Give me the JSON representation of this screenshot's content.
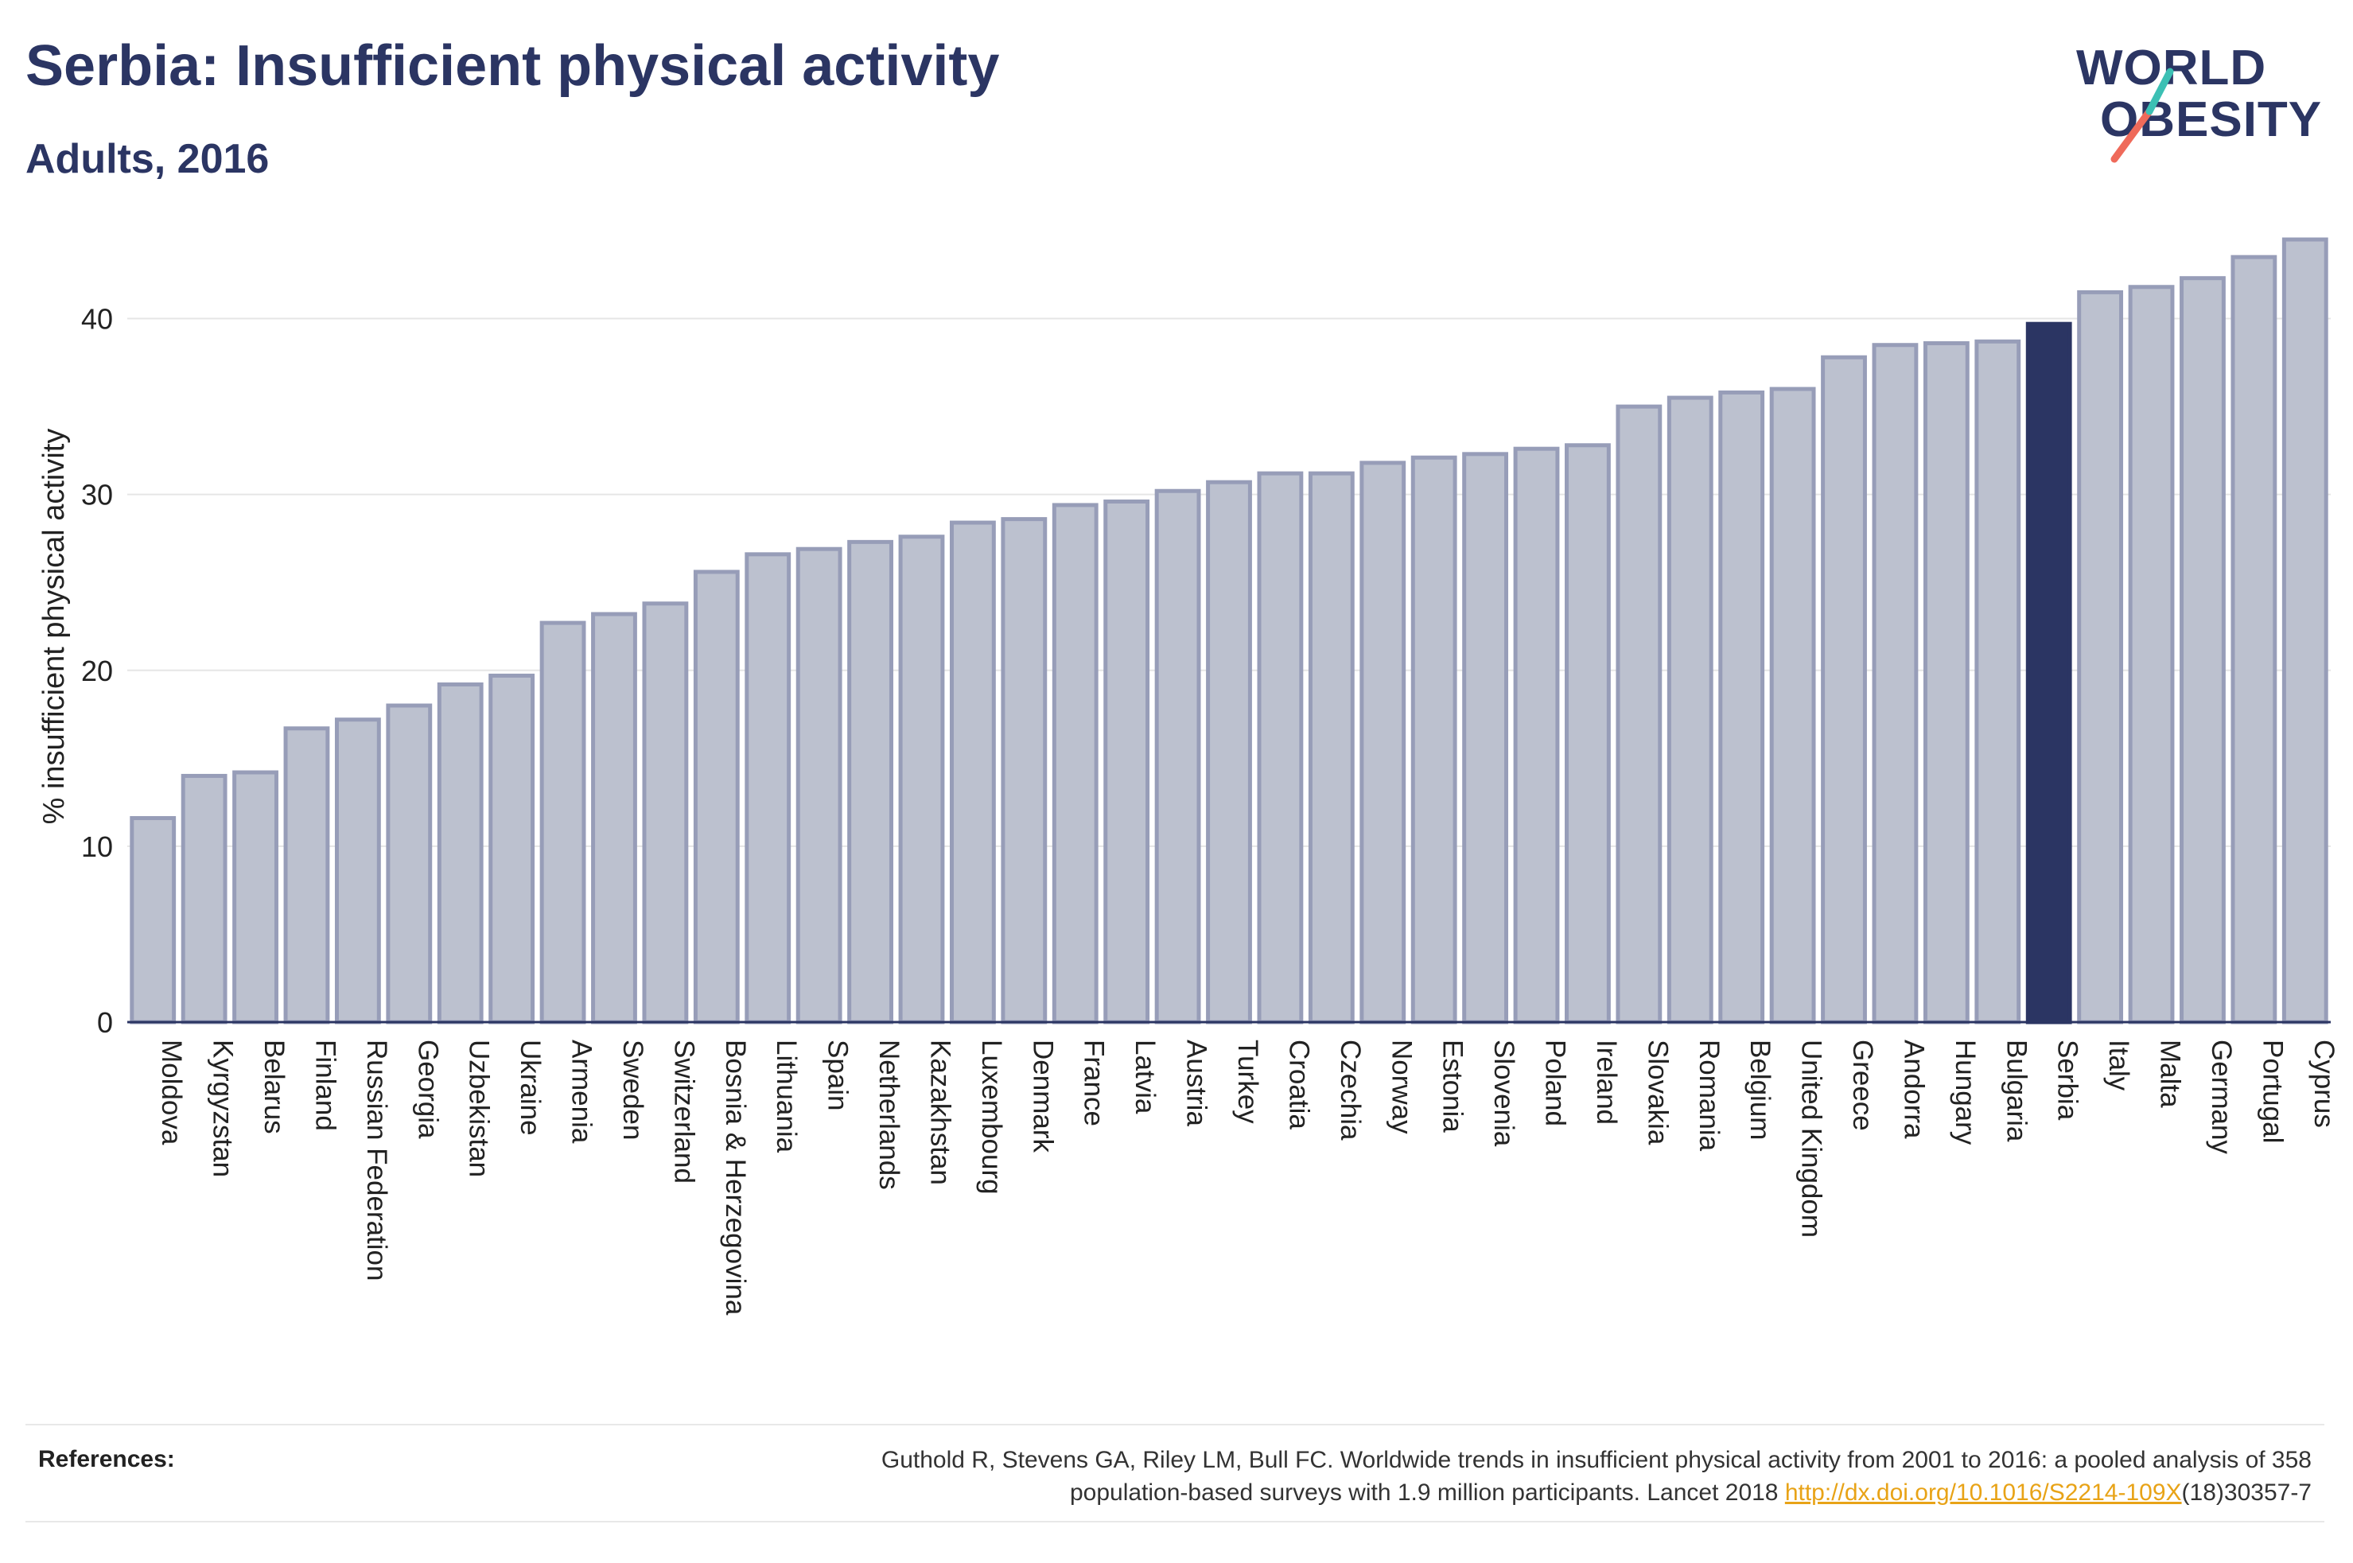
{
  "header": {
    "title": "Serbia: Insufficient physical activity",
    "subtitle": "Adults, 2016"
  },
  "logo": {
    "line1": "WORLD",
    "line2": "OBESITY"
  },
  "colors": {
    "bar_default": "#bcc1cf",
    "bar_default_border": "#979db8",
    "bar_highlight": "#2b3563",
    "text": "#2b3563",
    "link": "#e8a317"
  },
  "chart_data": {
    "type": "bar",
    "ylabel": "% insufficient physical activity",
    "xlabel": "",
    "ylim": [
      0,
      45
    ],
    "yticks": [
      0,
      10,
      20,
      30,
      40
    ],
    "grid": true,
    "highlight": "Serbia",
    "categories": [
      "Moldova",
      "Kyrgyzstan",
      "Belarus",
      "Finland",
      "Russian Federation",
      "Georgia",
      "Uzbekistan",
      "Ukraine",
      "Armenia",
      "Sweden",
      "Switzerland",
      "Bosnia & Herzegovina",
      "Lithuania",
      "Spain",
      "Netherlands",
      "Kazakhstan",
      "Luxembourg",
      "Denmark",
      "France",
      "Latvia",
      "Austria",
      "Turkey",
      "Croatia",
      "Czechia",
      "Norway",
      "Estonia",
      "Slovenia",
      "Poland",
      "Ireland",
      "Slovakia",
      "Romania",
      "Belgium",
      "United Kingdom",
      "Greece",
      "Andorra",
      "Hungary",
      "Bulgaria",
      "Serbia",
      "Italy",
      "Malta",
      "Germany",
      "Portugal",
      "Cyprus"
    ],
    "values": [
      11.6,
      14.0,
      14.2,
      16.7,
      17.2,
      18.0,
      19.2,
      19.7,
      22.7,
      23.2,
      23.8,
      25.6,
      26.6,
      26.9,
      27.3,
      27.6,
      28.4,
      28.6,
      29.4,
      29.6,
      30.2,
      30.7,
      31.2,
      31.2,
      31.8,
      32.1,
      32.3,
      32.6,
      32.8,
      35.0,
      35.5,
      35.8,
      36.0,
      37.8,
      38.5,
      38.6,
      38.7,
      39.7,
      41.5,
      41.8,
      42.3,
      43.5,
      44.5
    ]
  },
  "references": {
    "label": "References:",
    "text_line1": "Guthold R, Stevens GA, Riley LM, Bull FC. Worldwide trends in insufficient physical activity from 2001 to 2016: a pooled analysis of 358",
    "text_line2_prefix": "population-based surveys with 1.9 million participants. Lancet 2018 ",
    "link_text": "http://dx.doi.org/10.1016/S2214-109X",
    "text_line2_suffix": "(18)30357-7"
  }
}
